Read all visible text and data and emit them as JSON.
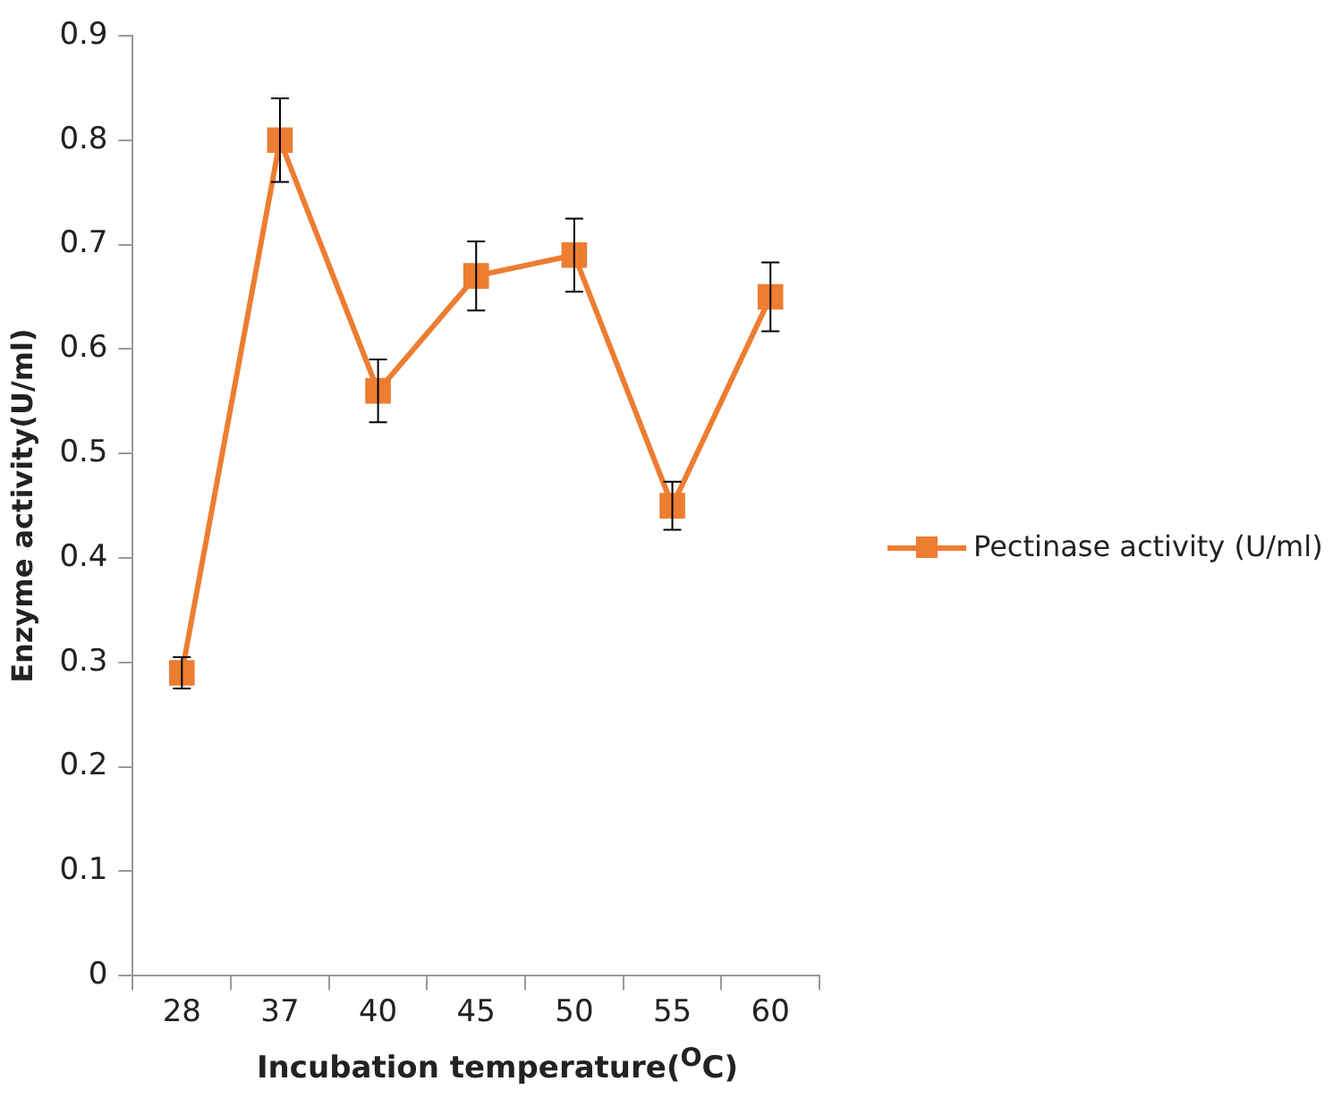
{
  "chart_data": {
    "type": "line",
    "xlabel": "Incubation temperature($^{O}$C)",
    "ylabel": "Enzyme activity(U/ml)",
    "categories": [
      "28",
      "37",
      "40",
      "45",
      "50",
      "55",
      "60"
    ],
    "series": [
      {
        "name": "Pectinase activity (U/ml)",
        "color": "#ed7d31",
        "values": [
          0.29,
          0.8,
          0.56,
          0.67,
          0.69,
          0.45,
          0.65
        ],
        "errors": [
          0.015,
          0.04,
          0.03,
          0.033,
          0.035,
          0.023,
          0.033
        ]
      }
    ],
    "ylim": [
      0,
      0.9
    ],
    "yticks": [
      0,
      0.1,
      0.2,
      0.3,
      0.4,
      0.5,
      0.6,
      0.7,
      0.8,
      0.9
    ],
    "grid": false,
    "legend": "right",
    "marker": "square",
    "line_style": "solid"
  }
}
